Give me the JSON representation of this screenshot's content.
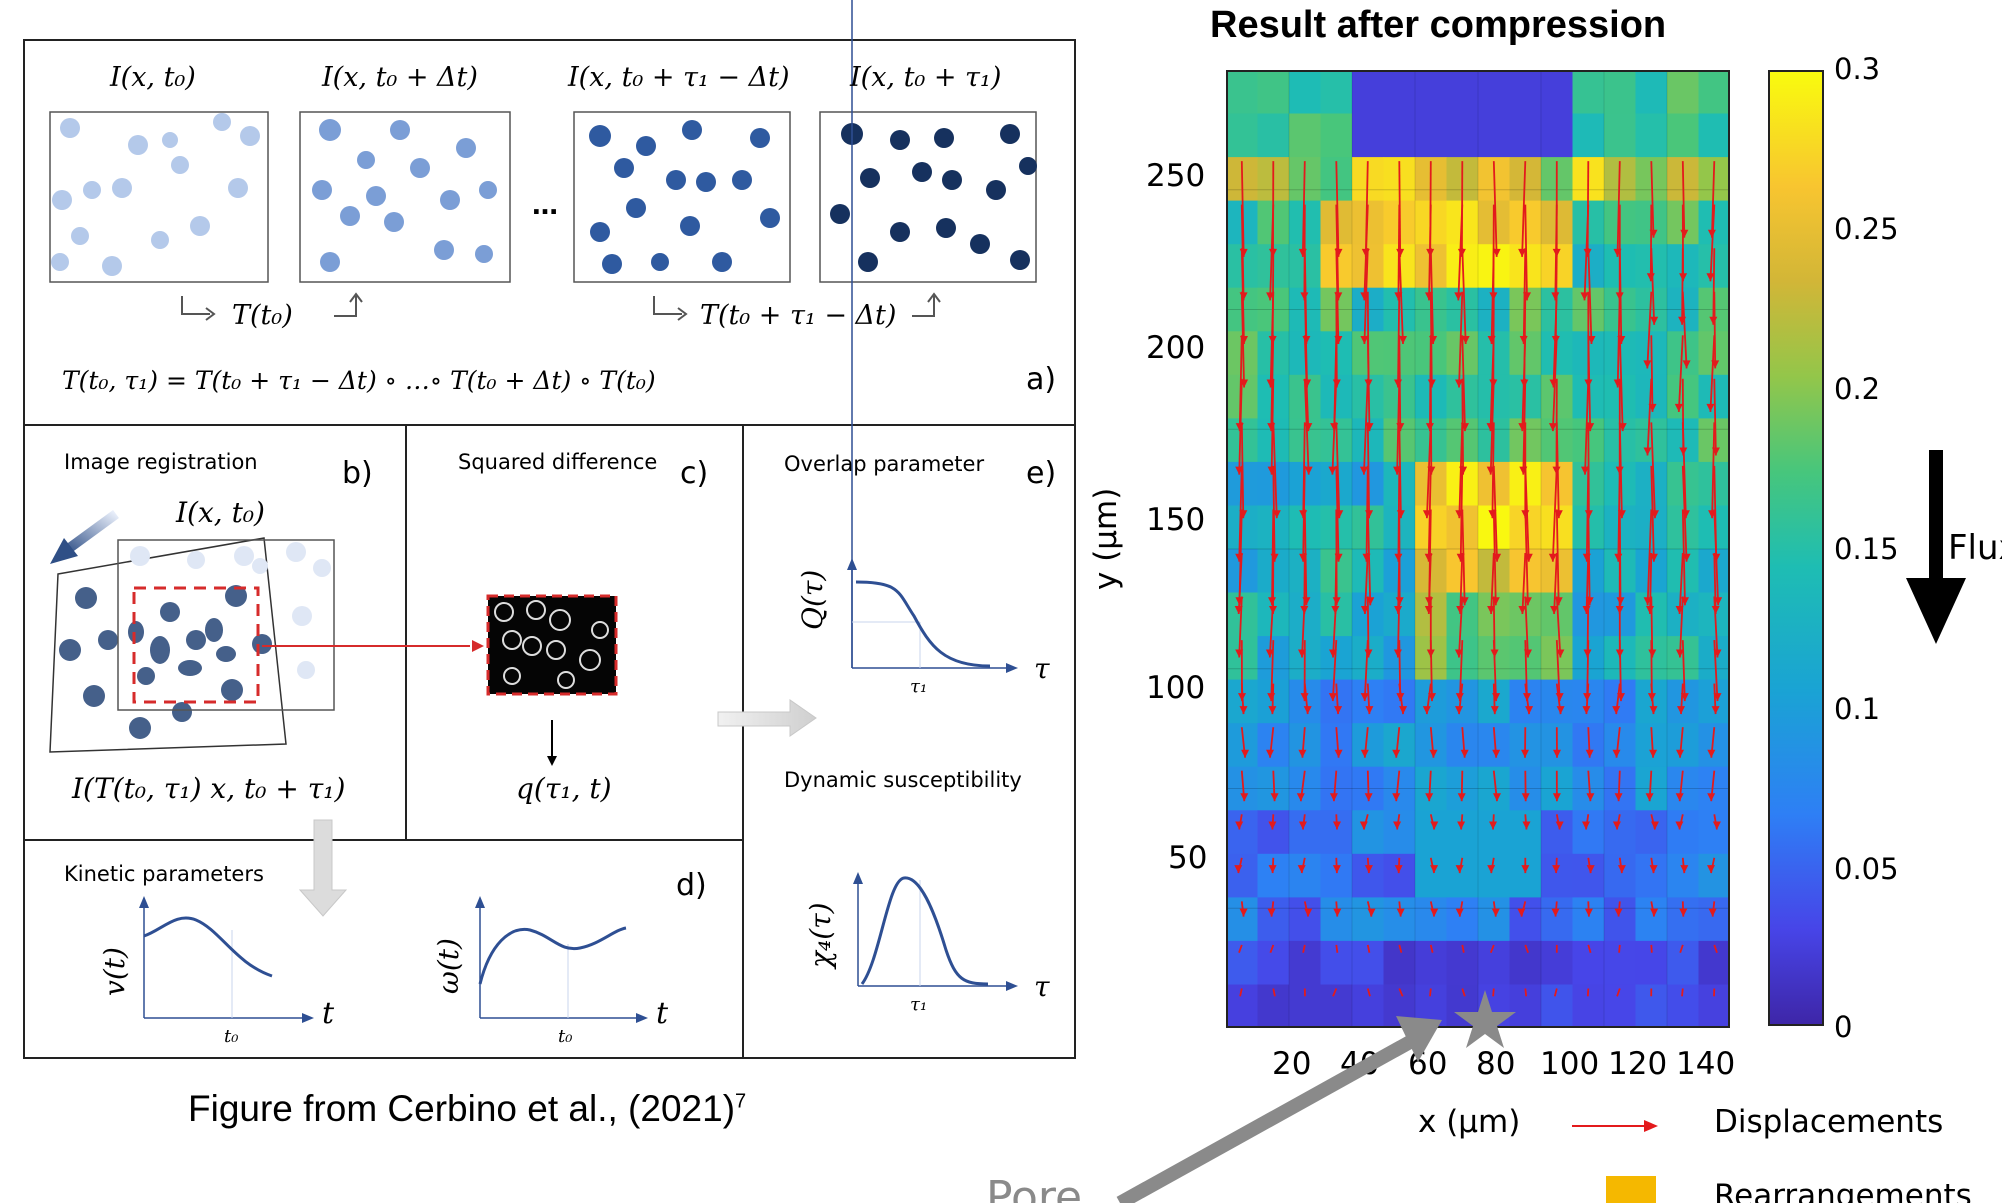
{
  "left_figure": {
    "frame_labels": [
      "I(x, t₀)",
      "I(x, t₀ + Δt)",
      "I(x, t₀ + τ₁ − Δt)",
      "I(x, t₀ + τ₁)"
    ],
    "ellipsis": "…",
    "transform_1": "T(t₀)",
    "transform_2": "T(t₀ + τ₁ − Δt)",
    "composition": "T(t₀, τ₁) = T(t₀ + τ₁ − Δt) ∘ …∘ T(t₀ + Δt) ∘ T(t₀)",
    "panel_a": "a)",
    "panel_b": "b)",
    "panel_c": "c)",
    "panel_d": "d)",
    "panel_e": "e)",
    "image_registration": "Image registration",
    "reg_top_label": "I(x, t₀)",
    "reg_bottom_label": "I(T(t₀, τ₁) x, t₀ + τ₁)",
    "squared_difference": "Squared difference",
    "q_label": "q(τ₁, t)",
    "overlap_parameter": "Overlap parameter",
    "Q_label": "Q(τ)",
    "tau": "τ",
    "tau1": "τ₁",
    "dynamic_susceptibility": "Dynamic susceptibility",
    "chi_label": "χ₄(τ)",
    "kinetic_parameters": "Kinetic parameters",
    "v_label": "v(t)",
    "omega_label": "ω(t)",
    "t": "t",
    "t0": "t₀",
    "caption": "Figure from Cerbino et al., (2021)",
    "caption_sup": "7"
  },
  "right_figure": {
    "title": "Result after compression",
    "ylabel": "y (µm)",
    "xlabel": "x (µm)",
    "y_ticks": [
      "250",
      "200",
      "150",
      "100",
      "50"
    ],
    "x_ticks": [
      "20",
      "40",
      "60",
      "80",
      "100",
      "120",
      "140"
    ],
    "colorbar_ticks": [
      "0.3",
      "0.25",
      "0.2",
      "0.15",
      "0.1",
      "0.05",
      "0"
    ],
    "flux_label": "Flux",
    "legend_displacements": "Displacements",
    "legend_rearrangements": "Rearrangements",
    "pore_label": "Pore",
    "colors": {
      "arrow": "#e31a1c",
      "rearrangement": "#f5b800",
      "pore": "#888888"
    }
  },
  "chart_data": {
    "type": "heatmap",
    "title": "Result after compression",
    "xlabel": "x (µm)",
    "ylabel": "y (µm)",
    "xlim": [
      0,
      145
    ],
    "ylim": [
      0,
      280
    ],
    "colorbar_range": [
      0,
      0.3
    ]
  }
}
